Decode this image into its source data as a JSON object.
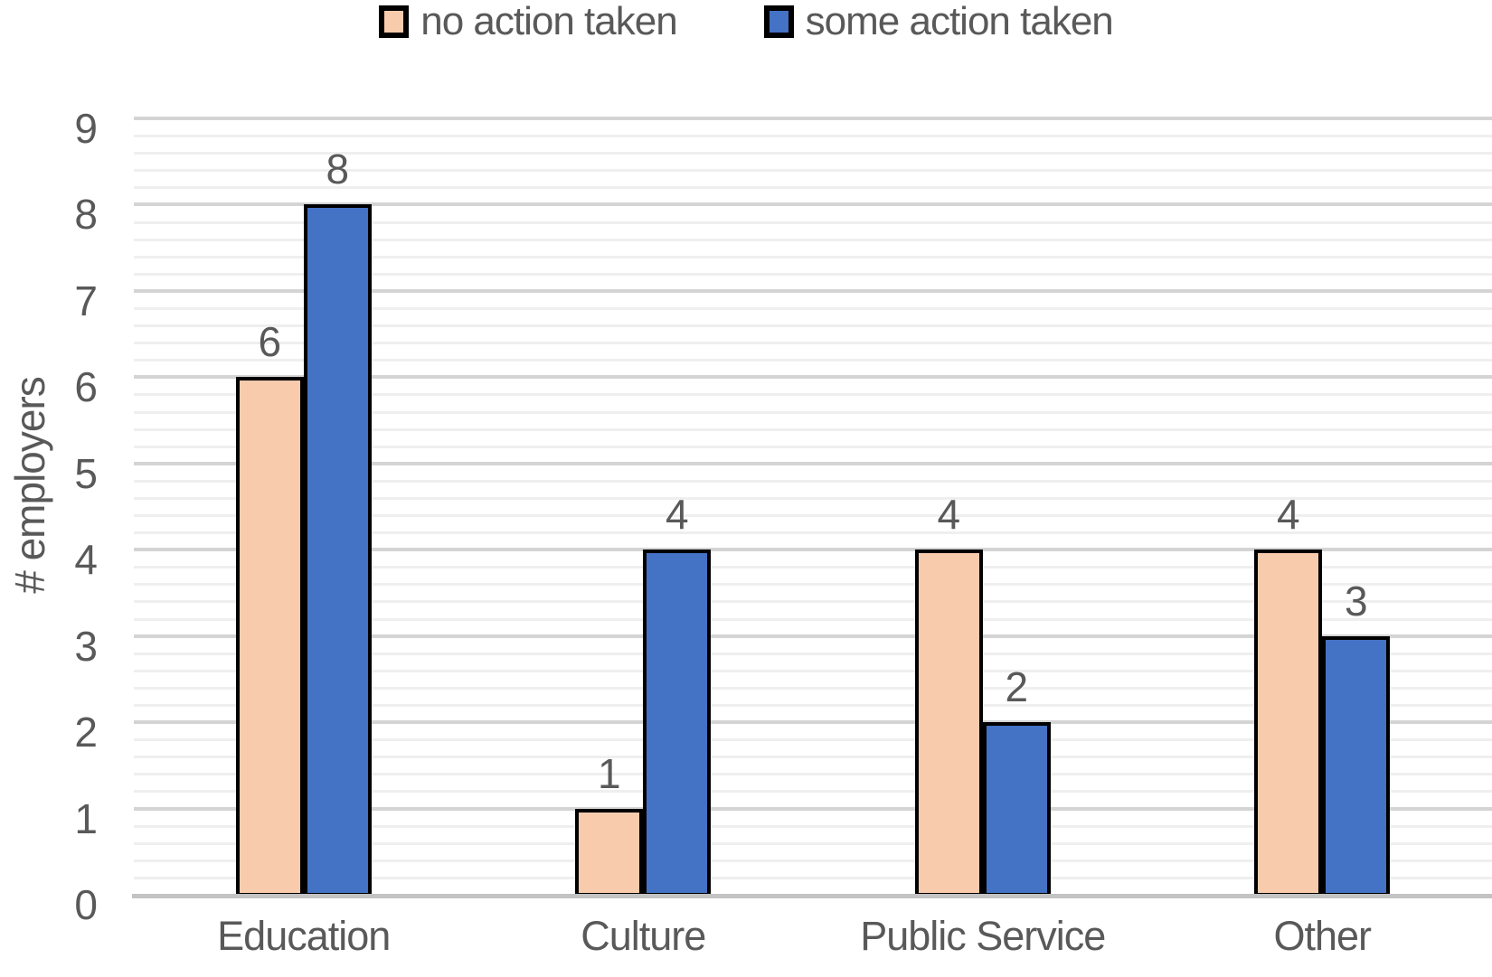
{
  "chart_data": {
    "type": "bar",
    "categories": [
      "Education",
      "Culture",
      "Public Service",
      "Other"
    ],
    "series": [
      {
        "name": "no action taken",
        "color": "#F8CBAD",
        "values": [
          6,
          1,
          4,
          4
        ]
      },
      {
        "name": "some action taken",
        "color": "#4472C4",
        "values": [
          8,
          4,
          2,
          3
        ]
      }
    ],
    "data_labels": [
      [
        "6",
        "1",
        "4",
        "4"
      ],
      [
        "8",
        "4",
        "2",
        "3"
      ]
    ],
    "title": "",
    "xlabel": "",
    "ylabel": "# employers",
    "ylim": [
      0,
      9
    ],
    "yticks": [
      "0",
      "1",
      "2",
      "3",
      "4",
      "5",
      "6",
      "7",
      "8",
      "9"
    ],
    "y_major_unit": 1,
    "y_minor_unit": 0.2,
    "grid": "major and minor horizontal gridlines",
    "legend_position": "top-center",
    "bar_outline_color": "#000000"
  },
  "colors": {
    "series_no_action": "#F8CBAD",
    "series_some_action": "#4472C4",
    "bar_border": "#000000",
    "major_gridline": "#d4d4d4",
    "minor_gridline": "#efefef",
    "axis_line": "#c3c3c3",
    "text": "#595959",
    "background": "#ffffff"
  }
}
